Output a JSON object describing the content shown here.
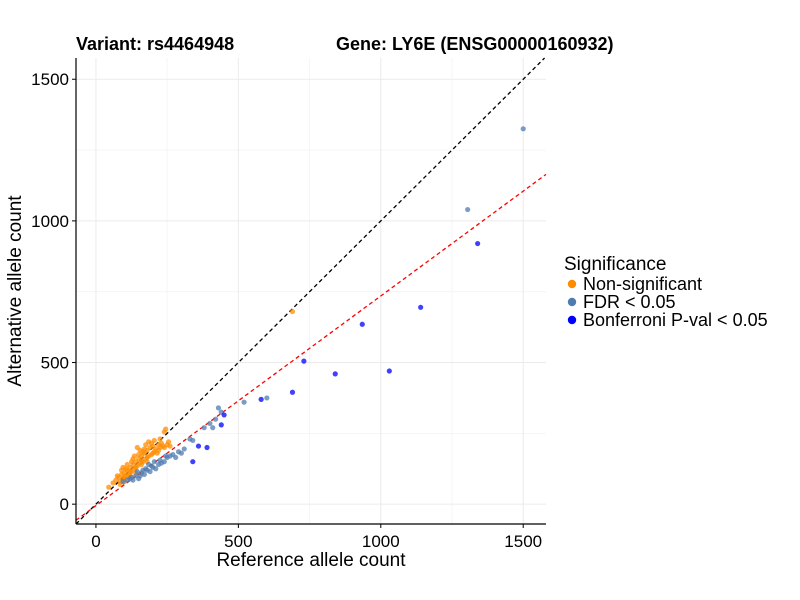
{
  "chart_data": {
    "type": "scatter",
    "title_left": "Variant: rs4464948",
    "title_right": "Gene: LY6E (ENSG00000160932)",
    "xlabel": "Reference allele count",
    "ylabel": "Alternative allele count",
    "xlim": [
      -70,
      1580
    ],
    "ylim": [
      -70,
      1575
    ],
    "x_ticks": [
      0,
      500,
      1000,
      1500
    ],
    "y_ticks": [
      0,
      500,
      1000,
      1500
    ],
    "reference_lines": [
      {
        "name": "identity-line",
        "slope": 1.0,
        "intercept": 0,
        "color": "#000000",
        "dash": "dashed"
      },
      {
        "name": "fit-line",
        "slope": 0.74,
        "intercept": -5,
        "color": "#ff0000",
        "dash": "dashed"
      }
    ],
    "legend": {
      "title": "Significance",
      "entries": [
        {
          "label": "Non-significant",
          "color": "#ff8c00"
        },
        {
          "label": "FDR < 0.05",
          "color": "#4f7cb0"
        },
        {
          "label": "Bonferroni P-val < 0.05",
          "color": "#0000ff"
        }
      ]
    },
    "series": [
      {
        "name": "Non-significant",
        "color": "#ff8c00",
        "points": [
          [
            45,
            60
          ],
          [
            60,
            75
          ],
          [
            70,
            85
          ],
          [
            80,
            95
          ],
          [
            85,
            80
          ],
          [
            90,
            105
          ],
          [
            95,
            90
          ],
          [
            100,
            110
          ],
          [
            105,
            100
          ],
          [
            110,
            120
          ],
          [
            115,
            95
          ],
          [
            120,
            130
          ],
          [
            125,
            115
          ],
          [
            130,
            140
          ],
          [
            135,
            125
          ],
          [
            140,
            150
          ],
          [
            145,
            135
          ],
          [
            150,
            160
          ],
          [
            155,
            145
          ],
          [
            160,
            170
          ],
          [
            165,
            150
          ],
          [
            170,
            180
          ],
          [
            175,
            160
          ],
          [
            180,
            190
          ],
          [
            185,
            170
          ],
          [
            190,
            200
          ],
          [
            195,
            175
          ],
          [
            200,
            205
          ],
          [
            205,
            185
          ],
          [
            210,
            195
          ],
          [
            215,
            180
          ],
          [
            220,
            210
          ],
          [
            225,
            200
          ],
          [
            230,
            215
          ],
          [
            235,
            205
          ],
          [
            240,
            255
          ],
          [
            245,
            265
          ],
          [
            250,
            210
          ],
          [
            255,
            220
          ],
          [
            260,
            205
          ],
          [
            90,
            120
          ],
          [
            100,
            95
          ],
          [
            110,
            140
          ],
          [
            120,
            115
          ],
          [
            130,
            160
          ],
          [
            140,
            130
          ],
          [
            150,
            175
          ],
          [
            160,
            155
          ],
          [
            170,
            195
          ],
          [
            180,
            165
          ],
          [
            75,
            100
          ],
          [
            95,
            130
          ],
          [
            115,
            105
          ],
          [
            135,
            170
          ],
          [
            155,
            190
          ],
          [
            175,
            210
          ],
          [
            195,
            215
          ],
          [
            85,
            70
          ],
          [
            105,
            125
          ],
          [
            125,
            150
          ],
          [
            145,
            200
          ],
          [
            165,
            185
          ],
          [
            185,
            220
          ],
          [
            205,
            225
          ],
          [
            225,
            230
          ],
          [
            140,
            110
          ],
          [
            160,
            140
          ],
          [
            180,
            150
          ],
          [
            200,
            180
          ],
          [
            220,
            190
          ],
          [
            240,
            200
          ],
          [
            100,
            80
          ],
          [
            120,
            100
          ],
          [
            690,
            680
          ]
        ]
      },
      {
        "name": "FDR < 0.05",
        "color": "#4f7cb0",
        "points": [
          [
            95,
            80
          ],
          [
            110,
            85
          ],
          [
            125,
            95
          ],
          [
            140,
            100
          ],
          [
            150,
            90
          ],
          [
            160,
            110
          ],
          [
            170,
            105
          ],
          [
            180,
            120
          ],
          [
            190,
            115
          ],
          [
            200,
            130
          ],
          [
            210,
            125
          ],
          [
            220,
            140
          ],
          [
            230,
            145
          ],
          [
            240,
            150
          ],
          [
            250,
            165
          ],
          [
            260,
            170
          ],
          [
            270,
            175
          ],
          [
            280,
            165
          ],
          [
            290,
            185
          ],
          [
            300,
            180
          ],
          [
            130,
            85
          ],
          [
            145,
            115
          ],
          [
            165,
            120
          ],
          [
            185,
            140
          ],
          [
            205,
            150
          ],
          [
            225,
            155
          ],
          [
            245,
            170
          ],
          [
            310,
            195
          ],
          [
            330,
            230
          ],
          [
            340,
            225
          ],
          [
            380,
            270
          ],
          [
            400,
            285
          ],
          [
            420,
            300
          ],
          [
            440,
            325
          ],
          [
            430,
            340
          ],
          [
            520,
            360
          ],
          [
            600,
            375
          ],
          [
            1305,
            1040
          ],
          [
            1500,
            1325
          ],
          [
            410,
            270
          ],
          [
            120,
            90
          ],
          [
            155,
            100
          ],
          [
            175,
            125
          ],
          [
            195,
            135
          ]
        ]
      },
      {
        "name": "Bonferroni P-val < 0.05",
        "color": "#0000ff",
        "points": [
          [
            340,
            150
          ],
          [
            360,
            205
          ],
          [
            390,
            200
          ],
          [
            440,
            280
          ],
          [
            450,
            315
          ],
          [
            580,
            370
          ],
          [
            690,
            395
          ],
          [
            730,
            505
          ],
          [
            840,
            460
          ],
          [
            935,
            635
          ],
          [
            1030,
            470
          ],
          [
            1140,
            695
          ],
          [
            1340,
            920
          ]
        ]
      }
    ]
  }
}
